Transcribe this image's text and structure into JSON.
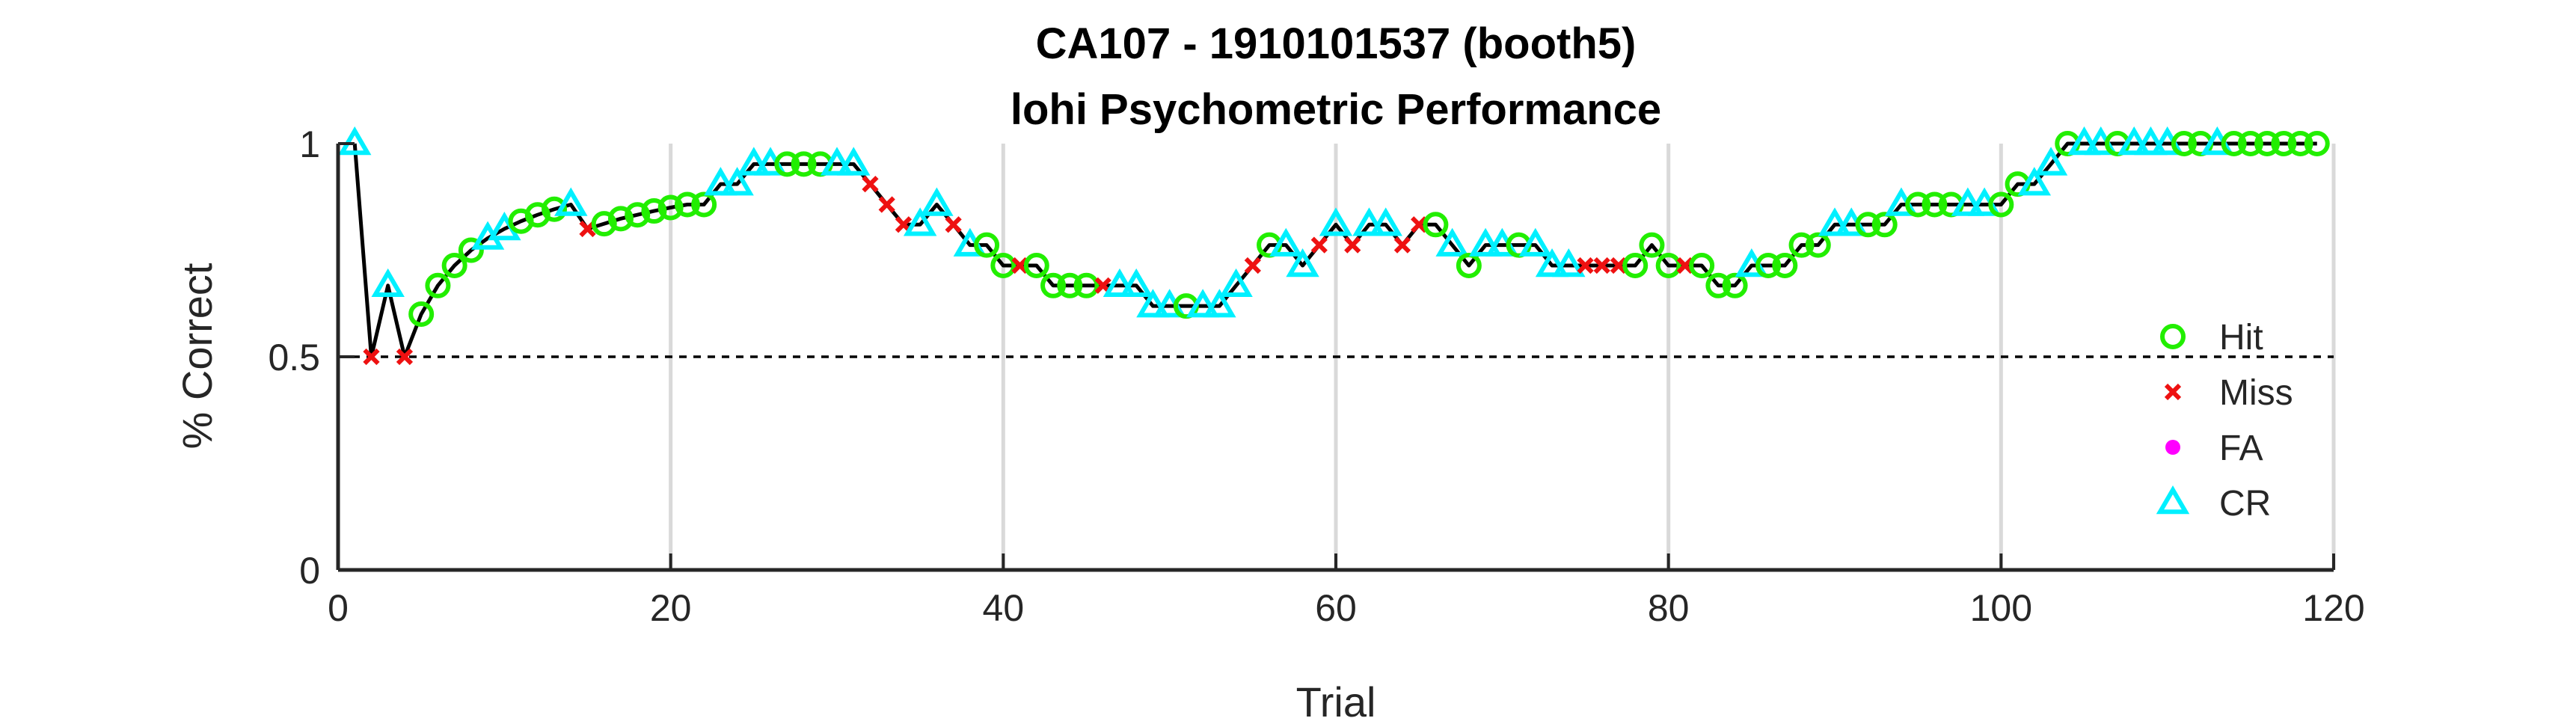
{
  "chart_data": {
    "type": "line",
    "title": "CA107 - 1910101537 (booth5)",
    "subtitle": "lohi Psychometric Performance",
    "xlabel": "Trial",
    "ylabel": "% Correct",
    "xlim": [
      0,
      120
    ],
    "ylim": [
      0,
      1
    ],
    "xticks": [
      "0",
      "20",
      "40",
      "60",
      "80",
      "100",
      "120"
    ],
    "yticks": [
      "0",
      "0.5",
      "1"
    ],
    "grid": "vertical",
    "chance_level": 0.5,
    "legend_position": "right",
    "colors": {
      "line": "#000000",
      "hit": "#22ee00",
      "miss": "#ee1111",
      "fa": "#ff00ff",
      "cr": "#00f0ff",
      "grid": "#d9d9d9",
      "axis": "#262626"
    },
    "legend": [
      {
        "key": "hit",
        "label": "Hit",
        "marker": "circle"
      },
      {
        "key": "miss",
        "label": "Miss",
        "marker": "x"
      },
      {
        "key": "fa",
        "label": "FA",
        "marker": "dot"
      },
      {
        "key": "cr",
        "label": "CR",
        "marker": "triangle"
      }
    ],
    "outcomes": "CMCMHHHHCCHHHCMHHHHHHHCCCCHHHCCMMMCCMCHHMHHHHMCCCCHCCCMHCCMCMCCMMHCHCCHCCCMMMHHHMHHHCHHHHCCHHCHHHCCHHCCHCCHCCCHHCHHHHHH",
    "x": [
      1,
      2,
      3,
      4,
      5,
      6,
      7,
      8,
      9,
      10,
      11,
      12,
      13,
      14,
      15,
      16,
      17,
      18,
      19,
      20,
      21,
      22,
      23,
      24,
      25,
      26,
      27,
      28,
      29,
      30,
      31,
      32,
      33,
      34,
      35,
      36,
      37,
      38,
      39,
      40,
      41,
      42,
      43,
      44,
      45,
      46,
      47,
      48,
      49,
      50,
      51,
      52,
      53,
      54,
      55,
      56,
      57,
      58,
      59,
      60,
      61,
      62,
      63,
      64,
      65,
      66,
      67,
      68,
      69,
      70,
      71,
      72,
      73,
      74,
      75,
      76,
      77,
      78,
      79,
      80,
      81,
      82,
      83,
      84,
      85,
      86,
      87,
      88,
      89,
      90,
      91,
      92,
      93,
      94,
      95,
      96,
      97,
      98,
      99,
      100,
      101,
      102,
      103,
      104,
      105,
      106,
      107,
      108,
      109,
      110,
      111,
      112,
      113,
      114,
      115,
      116,
      117,
      118,
      119
    ],
    "y": [
      1.0,
      0.5,
      0.667,
      0.5,
      0.6,
      0.667,
      0.714,
      0.75,
      0.778,
      0.8,
      0.818,
      0.833,
      0.846,
      0.857,
      0.8,
      0.812,
      0.824,
      0.833,
      0.842,
      0.85,
      0.857,
      0.857,
      0.905,
      0.905,
      0.952,
      0.952,
      0.952,
      0.952,
      0.952,
      0.952,
      0.952,
      0.905,
      0.857,
      0.81,
      0.81,
      0.857,
      0.81,
      0.762,
      0.762,
      0.714,
      0.714,
      0.714,
      0.667,
      0.667,
      0.667,
      0.667,
      0.667,
      0.667,
      0.619,
      0.619,
      0.619,
      0.619,
      0.619,
      0.667,
      0.714,
      0.762,
      0.762,
      0.714,
      0.762,
      0.81,
      0.762,
      0.81,
      0.81,
      0.762,
      0.81,
      0.81,
      0.762,
      0.714,
      0.762,
      0.762,
      0.762,
      0.762,
      0.714,
      0.714,
      0.714,
      0.714,
      0.714,
      0.714,
      0.762,
      0.714,
      0.714,
      0.714,
      0.667,
      0.667,
      0.714,
      0.714,
      0.714,
      0.762,
      0.762,
      0.81,
      0.81,
      0.81,
      0.81,
      0.857,
      0.857,
      0.857,
      0.857,
      0.857,
      0.857,
      0.857,
      0.905,
      0.905,
      0.952,
      1.0,
      1.0,
      1.0,
      1.0,
      1.0,
      1.0,
      1.0,
      1.0,
      1.0,
      1.0,
      1.0,
      1.0,
      1.0,
      1.0,
      1.0,
      1.0
    ]
  }
}
